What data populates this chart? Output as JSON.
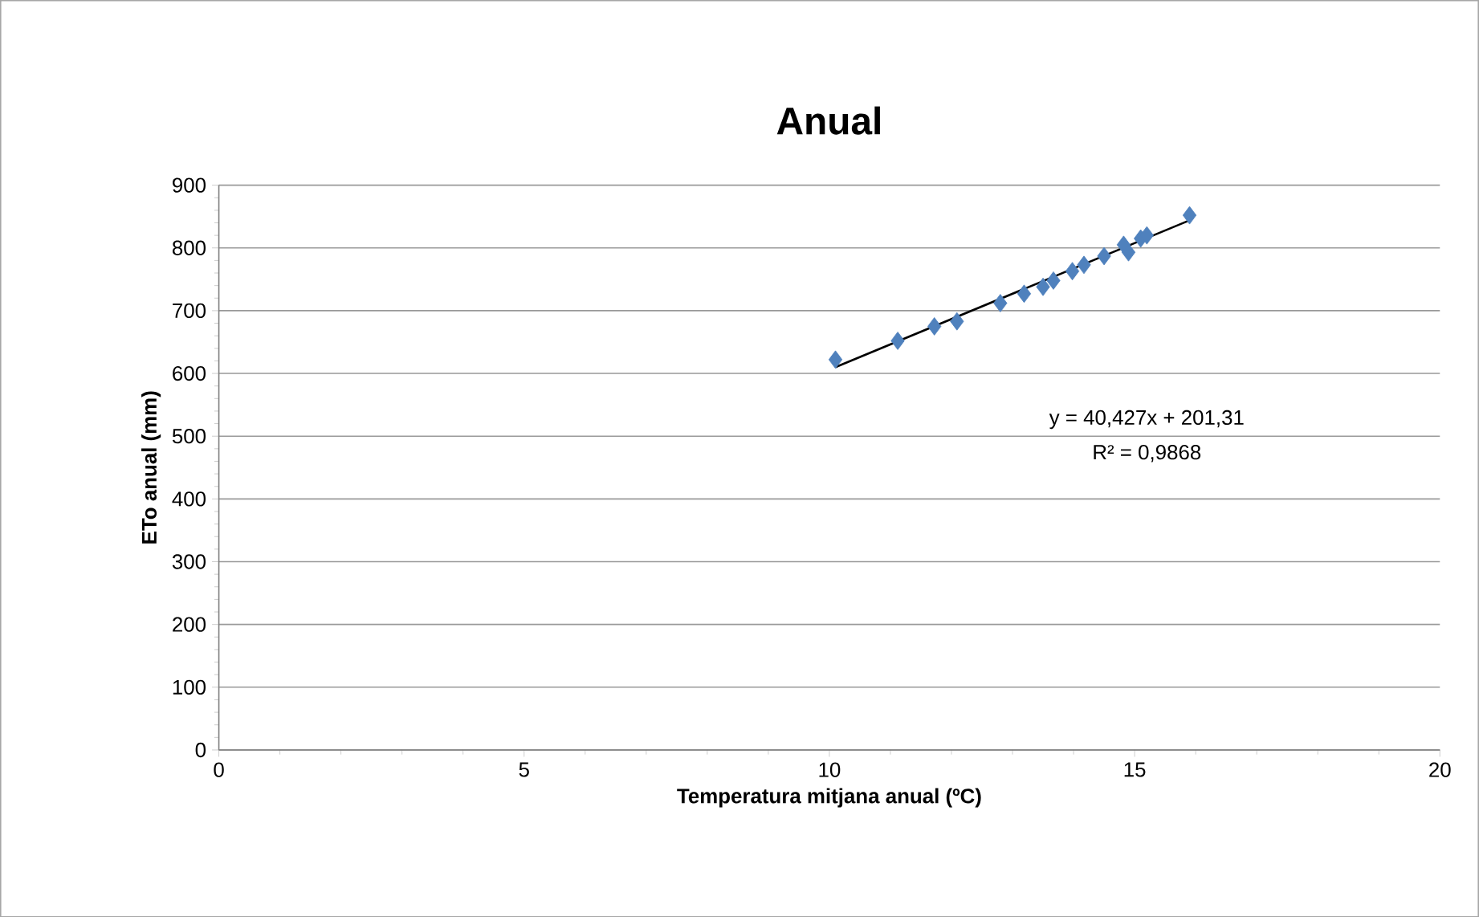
{
  "chart_data": {
    "type": "scatter",
    "title": "Anual",
    "xlabel": "Temperatura mitjana anual (ºC)",
    "ylabel": "ETo anual (mm)",
    "xlim": [
      0,
      20
    ],
    "xticks": [
      0,
      5,
      10,
      15,
      20
    ],
    "ylim": [
      0,
      900
    ],
    "yticks": [
      0,
      100,
      200,
      300,
      400,
      500,
      600,
      700,
      800,
      900
    ],
    "grid": "y",
    "marker": "diamond",
    "series": [
      {
        "color": "#4f81bd",
        "x": [
          10.1,
          11.12,
          11.72,
          12.09,
          12.8,
          13.19,
          13.5,
          13.67,
          13.98,
          14.17,
          14.5,
          14.82,
          14.9,
          15.1,
          15.2,
          15.9
        ],
        "values": [
          622,
          652,
          675,
          683,
          712,
          727,
          738,
          748,
          763,
          773,
          787,
          805,
          793,
          815,
          820,
          852
        ]
      },
      {
        "type": "line",
        "color": "#000000",
        "marker": "none",
        "line_style": "solid",
        "x": [
          10.1,
          15.9
        ],
        "values": [
          610,
          844
        ]
      }
    ],
    "annotations": [
      "y = 40,427x + 201,31",
      "R² = 0,9868"
    ]
  }
}
